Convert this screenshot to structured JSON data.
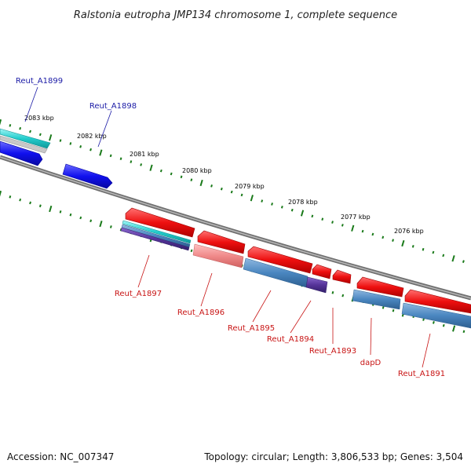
{
  "title": "Ralstonia eutropha JMP134 chromosome 1, complete sequence",
  "footer": {
    "accession": "Accession: NC_007347",
    "summary": "Topology: circular; Length: 3,806,533 bp; Genes: 3,504"
  },
  "scale_labels": [
    "2083 kbp",
    "2082 kbp",
    "2081 kbp",
    "2080 kbp",
    "2079 kbp",
    "2078 kbp",
    "2077 kbp",
    "2076 kbp"
  ],
  "gene_labels_top": [
    "Reut_A1899",
    "Reut_A1898"
  ],
  "gene_labels_bottom": [
    "Reut_A1897",
    "Reut_A1896",
    "Reut_A1895",
    "Reut_A1894",
    "Reut_A1893",
    "dapD",
    "Reut_A1891"
  ],
  "colors": {
    "forward_gene": "#1010ee",
    "reverse_gene": "#ee1010",
    "forward_label": "#1a1aa6",
    "reverse_label": "#c81414",
    "tick": "#1a7a1a",
    "backbone": "#888888",
    "cyan_feature": "#22cccc",
    "steel_feature": "#4a86c0",
    "purple_feature": "#553399",
    "pink_feature": "#f08a8a"
  }
}
